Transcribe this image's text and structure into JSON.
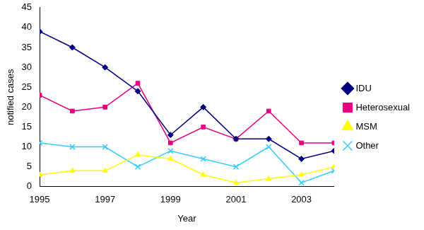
{
  "chart_data": {
    "type": "line",
    "x_label": "Year",
    "y_label": "notified cases",
    "x": [
      1995,
      1996,
      1997,
      1998,
      1999,
      2000,
      2001,
      2002,
      2003,
      2004
    ],
    "xlim": [
      1995,
      2004
    ],
    "xticks": [
      1995,
      1997,
      1999,
      2001,
      2003
    ],
    "ylim": [
      0,
      45
    ],
    "yticks": [
      0,
      5,
      10,
      15,
      20,
      25,
      30,
      35,
      40,
      45
    ],
    "grid": false,
    "legend": "right",
    "series": [
      {
        "name": "IDU",
        "color": "#000080",
        "marker": "diamond",
        "values": [
          39,
          35,
          30,
          24,
          13,
          20,
          12,
          12,
          7,
          9
        ]
      },
      {
        "name": "Heterosexual",
        "color": "#e6007e",
        "marker": "square",
        "values": [
          23,
          19,
          20,
          26,
          11,
          15,
          12,
          19,
          11,
          11
        ]
      },
      {
        "name": "MSM",
        "color": "#ffff00",
        "marker": "triangle",
        "values": [
          3,
          4,
          4,
          8,
          7,
          3,
          1,
          2,
          3,
          5
        ]
      },
      {
        "name": "Other",
        "color": "#33ccff",
        "marker": "x",
        "values": [
          11,
          10,
          10,
          5,
          9,
          7,
          5,
          10,
          1,
          4
        ]
      }
    ]
  }
}
